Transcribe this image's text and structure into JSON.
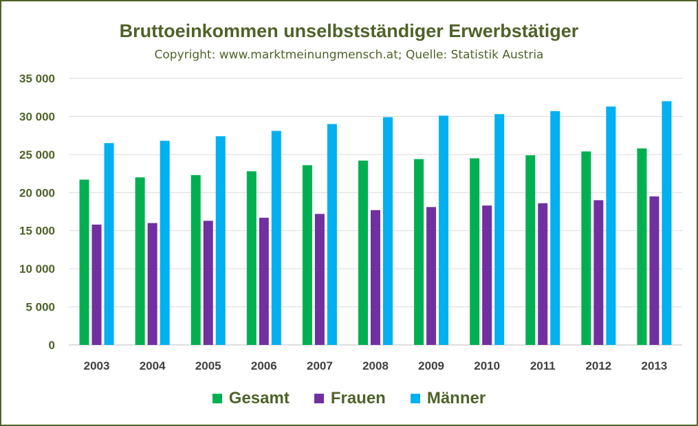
{
  "chart_data": {
    "type": "bar",
    "title": "Bruttoeinkommen unselbstständiger Erwerbstätiger",
    "subtitle": "Copyright: www.marktmeinungmensch.at; Quelle: Statistik Austria",
    "categories": [
      "2003",
      "2004",
      "2005",
      "2006",
      "2007",
      "2008",
      "2009",
      "2010",
      "2011",
      "2012",
      "2013"
    ],
    "series": [
      {
        "name": "Gesamt",
        "color": "#00b050",
        "values": [
          21700,
          22000,
          22300,
          22800,
          23600,
          24200,
          24400,
          24500,
          24900,
          25400,
          25800
        ]
      },
      {
        "name": "Frauen",
        "color": "#7030a0",
        "values": [
          15800,
          16000,
          16300,
          16700,
          17200,
          17700,
          18100,
          18300,
          18600,
          19000,
          19500
        ]
      },
      {
        "name": "Männer",
        "color": "#00b0f0",
        "values": [
          26500,
          26800,
          27400,
          28100,
          29000,
          29900,
          30100,
          30300,
          30700,
          31300,
          32000
        ]
      }
    ],
    "ylim": [
      0,
      35000
    ],
    "yticks": [
      0,
      5000,
      10000,
      15000,
      20000,
      25000,
      30000,
      35000
    ],
    "ytick_labels": [
      "0",
      "5 000",
      "10 000",
      "15 000",
      "20 000",
      "25 000",
      "30 000",
      "35 000"
    ],
    "grid": true,
    "legend_position": "bottom"
  },
  "colors": {
    "frame": "#4f6228",
    "title": "#4f6228",
    "gridline": "#d9d9d9"
  }
}
